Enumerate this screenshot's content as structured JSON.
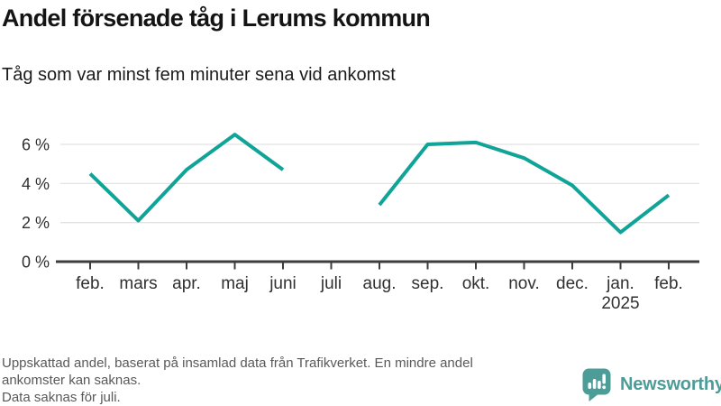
{
  "header": {
    "title": "Andel försenade tåg i Lerums kommun",
    "subtitle": "Tåg som var minst fem minuter sena vid ankomst"
  },
  "chart_data": {
    "type": "line",
    "title": "Andel försenade tåg i Lerums kommun",
    "subtitle": "Tåg som var minst fem minuter sena vid ankomst",
    "categories": [
      "feb.",
      "mars",
      "apr.",
      "maj",
      "juni",
      "juli",
      "aug.",
      "sep.",
      "okt.",
      "nov.",
      "dec.",
      "jan.",
      "feb."
    ],
    "year_label": {
      "index": 11,
      "text": "2025"
    },
    "series": [
      {
        "name": "Andel försenade tåg (%)",
        "values": [
          4.5,
          2.1,
          4.7,
          6.5,
          4.7,
          null,
          2.9,
          6.0,
          6.1,
          5.3,
          3.9,
          1.5,
          3.4
        ]
      }
    ],
    "unit": "%",
    "xlabel": "",
    "ylabel": "",
    "ylim": [
      0,
      7
    ],
    "y_ticks": [
      0,
      2,
      4,
      6
    ],
    "y_tick_labels": [
      "0 %",
      "2 %",
      "4 %",
      "6 %"
    ],
    "grid": "horizontal",
    "legend": "none",
    "missing_data_note": "Data saknas för juli.",
    "line_color": "#0fa497",
    "grid_color": "#e2e2e2",
    "axis_color": "#3d3d3d",
    "tick_label_color": "#303030"
  },
  "footer": {
    "lines": [
      "Uppskattad andel, baserat på insamlad data från Trafikverket. En mindre andel",
      "ankomster kan saknas.",
      "Data saknas för juli."
    ],
    "brand": {
      "name": "Newsworthy",
      "color": "#4c9c98"
    }
  }
}
